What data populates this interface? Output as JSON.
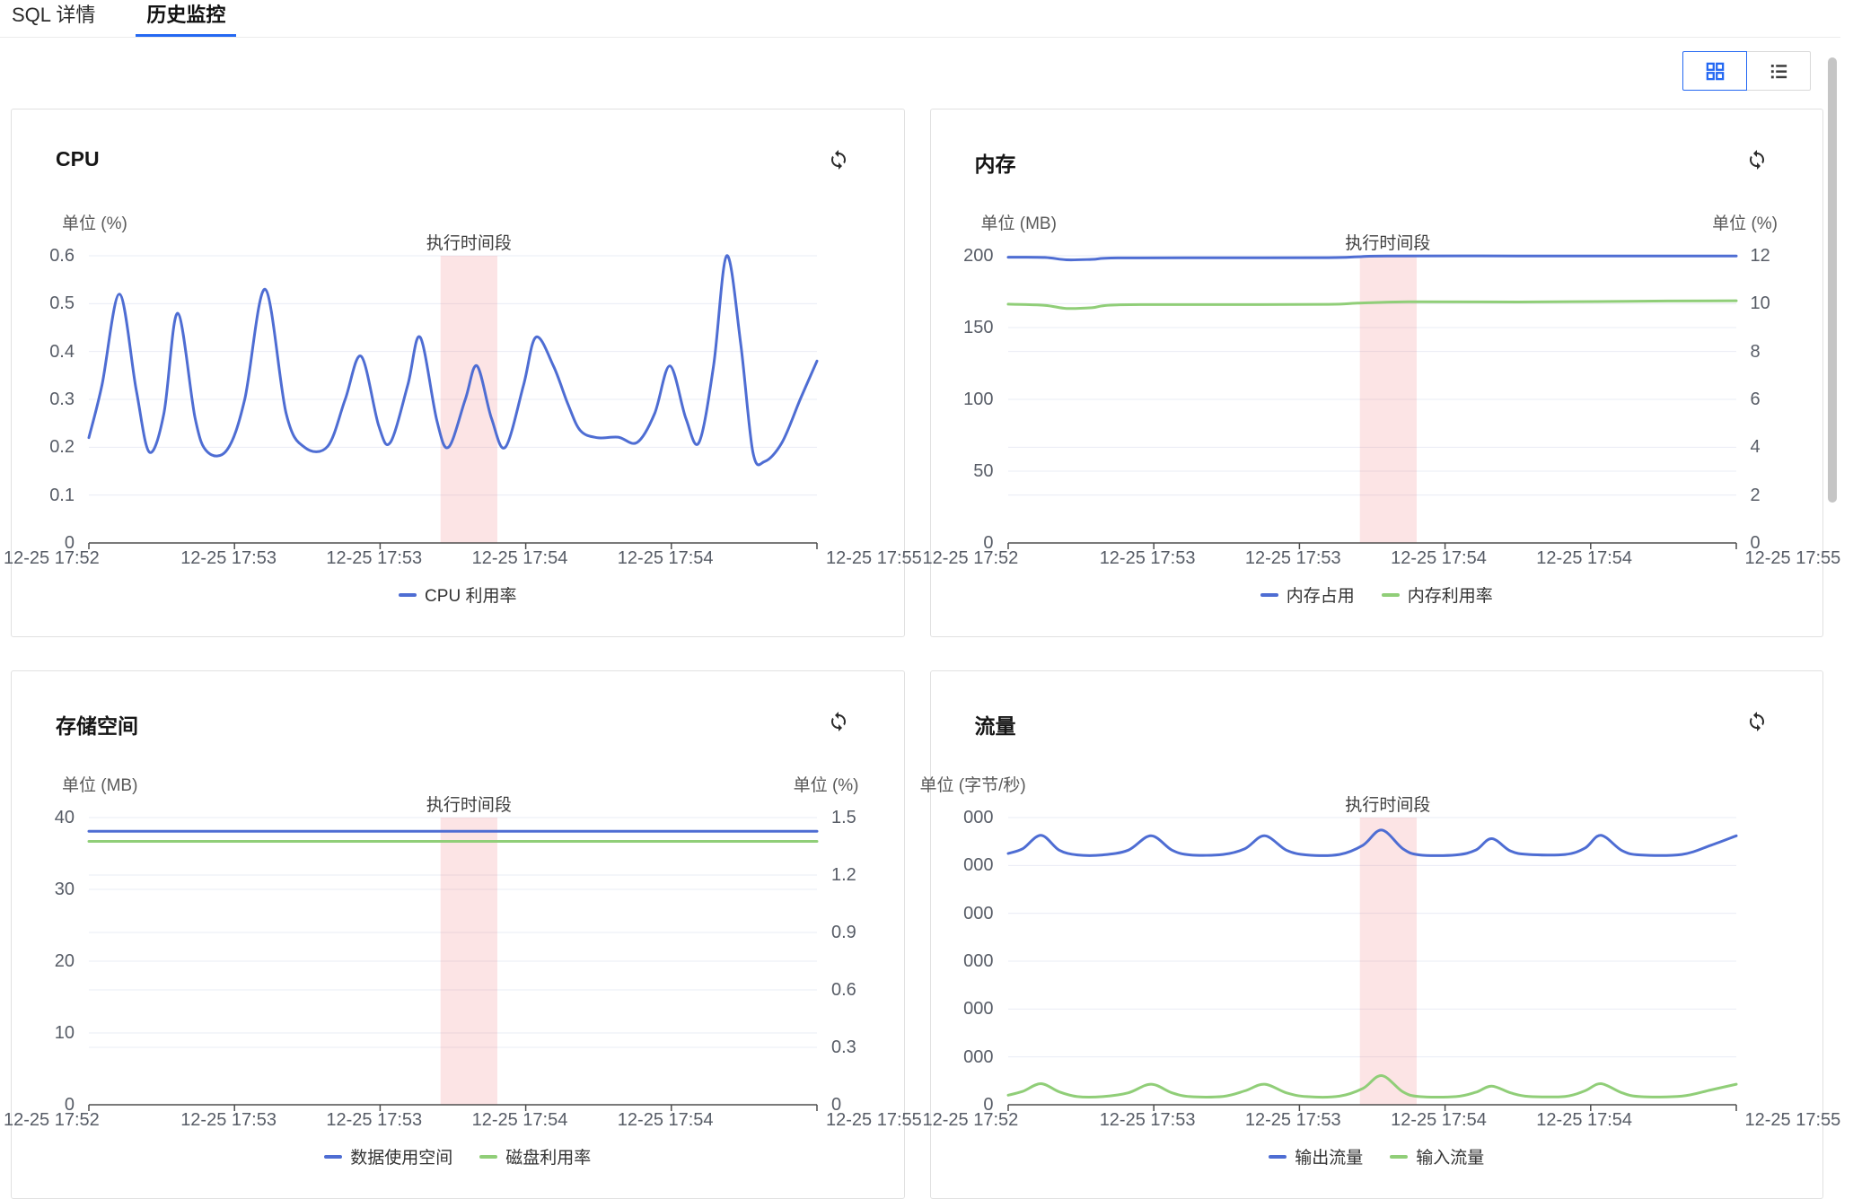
{
  "colors": {
    "accent": "#2468f2",
    "line_blue": "#4e6dd3",
    "line_green": "#90ce78",
    "band_pink": "rgba(237,104,110,0.18)",
    "grid_line": "#e9ecf4",
    "axis_line": "#4e4e4e"
  },
  "icons": {
    "refresh": "refresh-icon",
    "grid_view": "grid-view-icon",
    "list_view": "list-view-icon"
  },
  "tabs": [
    {
      "label": "SQL 详情",
      "active": false
    },
    {
      "label": "历史监控",
      "active": true
    }
  ],
  "cards": [
    {
      "title": "CPU",
      "type": "line",
      "unit_left": "单位 (%)",
      "unit_left_clipped": false,
      "unit_right": null,
      "band": {
        "from": 0.483,
        "to": 0.561,
        "label": "执行时间段"
      },
      "x_labels": [
        "12-25 17:52",
        "12-25 17:53",
        "12-25 17:53",
        "12-25 17:54",
        "12-25 17:54",
        "12-25 17:55"
      ],
      "left_axis": {
        "min": 0,
        "max": 0.6,
        "ticks": [
          {
            "v": 0.6,
            "label": "0.6"
          },
          {
            "v": 0.5,
            "label": "0.5"
          },
          {
            "v": 0.4,
            "label": "0.4"
          },
          {
            "v": 0.3,
            "label": "0.3"
          },
          {
            "v": 0.2,
            "label": "0.2"
          },
          {
            "v": 0.1,
            "label": "0.1"
          },
          {
            "v": 0,
            "label": "0"
          }
        ]
      },
      "right_axis": null,
      "series": [
        {
          "name": "CPU 利用率",
          "axis": "left",
          "color": "#4e6dd3",
          "points": [
            [
              0,
              0.22
            ],
            [
              0.018,
              0.33
            ],
            [
              0.042,
              0.52
            ],
            [
              0.065,
              0.32
            ],
            [
              0.083,
              0.19
            ],
            [
              0.103,
              0.27
            ],
            [
              0.122,
              0.48
            ],
            [
              0.146,
              0.26
            ],
            [
              0.163,
              0.19
            ],
            [
              0.19,
              0.195
            ],
            [
              0.214,
              0.3
            ],
            [
              0.242,
              0.53
            ],
            [
              0.271,
              0.27
            ],
            [
              0.296,
              0.2
            ],
            [
              0.328,
              0.202
            ],
            [
              0.352,
              0.3
            ],
            [
              0.374,
              0.39
            ],
            [
              0.398,
              0.245
            ],
            [
              0.414,
              0.21
            ],
            [
              0.438,
              0.33
            ],
            [
              0.455,
              0.43
            ],
            [
              0.478,
              0.255
            ],
            [
              0.494,
              0.2
            ],
            [
              0.517,
              0.3
            ],
            [
              0.533,
              0.37
            ],
            [
              0.553,
              0.26
            ],
            [
              0.572,
              0.2
            ],
            [
              0.597,
              0.33
            ],
            [
              0.614,
              0.43
            ],
            [
              0.638,
              0.37
            ],
            [
              0.658,
              0.29
            ],
            [
              0.675,
              0.235
            ],
            [
              0.698,
              0.22
            ],
            [
              0.727,
              0.221
            ],
            [
              0.753,
              0.21
            ],
            [
              0.777,
              0.27
            ],
            [
              0.798,
              0.37
            ],
            [
              0.82,
              0.26
            ],
            [
              0.838,
              0.21
            ],
            [
              0.858,
              0.37
            ],
            [
              0.876,
              0.6
            ],
            [
              0.895,
              0.42
            ],
            [
              0.912,
              0.19
            ],
            [
              0.928,
              0.17
            ],
            [
              0.952,
              0.21
            ],
            [
              0.977,
              0.3
            ],
            [
              1,
              0.38
            ]
          ]
        }
      ],
      "legend": [
        {
          "label": "CPU 利用率",
          "color": "#4e6dd3"
        }
      ]
    },
    {
      "title": "内存",
      "type": "line",
      "unit_left": "单位 (MB)",
      "unit_left_clipped": false,
      "unit_right": "单位 (%)",
      "band": {
        "from": 0.483,
        "to": 0.561,
        "label": "执行时间段"
      },
      "x_labels": [
        "12-25 17:52",
        "12-25 17:53",
        "12-25 17:53",
        "12-25 17:54",
        "12-25 17:54",
        "12-25 17:55"
      ],
      "left_axis": {
        "min": 0,
        "max": 200,
        "ticks": [
          {
            "v": 200,
            "label": "200"
          },
          {
            "v": 150,
            "label": "150"
          },
          {
            "v": 100,
            "label": "100"
          },
          {
            "v": 50,
            "label": "50"
          },
          {
            "v": 0,
            "label": "0"
          }
        ]
      },
      "right_axis": {
        "min": 0,
        "max": 12,
        "ticks": [
          {
            "v": 12,
            "label": "12"
          },
          {
            "v": 10,
            "label": "10"
          },
          {
            "v": 8,
            "label": "8"
          },
          {
            "v": 6,
            "label": "6"
          },
          {
            "v": 4,
            "label": "4"
          },
          {
            "v": 2,
            "label": "2"
          },
          {
            "v": 0,
            "label": "0"
          }
        ]
      },
      "series": [
        {
          "name": "内存占用",
          "axis": "left",
          "color": "#4e6dd3",
          "points": [
            [
              0,
              199
            ],
            [
              0.05,
              198.8
            ],
            [
              0.08,
              197.2
            ],
            [
              0.115,
              197.5
            ],
            [
              0.15,
              198.5
            ],
            [
              0.3,
              198.6
            ],
            [
              0.44,
              198.7
            ],
            [
              0.48,
              199.3
            ],
            [
              0.52,
              199.9
            ],
            [
              0.7,
              199.9
            ],
            [
              0.85,
              199.9
            ],
            [
              1,
              199.9
            ]
          ]
        },
        {
          "name": "内存利用率",
          "axis": "right",
          "color": "#90ce78",
          "points": [
            [
              0,
              9.98
            ],
            [
              0.05,
              9.93
            ],
            [
              0.08,
              9.8
            ],
            [
              0.115,
              9.83
            ],
            [
              0.15,
              9.95
            ],
            [
              0.3,
              9.96
            ],
            [
              0.44,
              9.97
            ],
            [
              0.48,
              10.02
            ],
            [
              0.55,
              10.08
            ],
            [
              0.7,
              10.07
            ],
            [
              0.85,
              10.1
            ],
            [
              1,
              10.12
            ]
          ]
        }
      ],
      "legend": [
        {
          "label": "内存占用",
          "color": "#4e6dd3"
        },
        {
          "label": "内存利用率",
          "color": "#90ce78"
        }
      ]
    },
    {
      "title": "存储空间",
      "type": "line",
      "unit_left": "单位 (MB)",
      "unit_left_clipped": false,
      "unit_right": "单位 (%)",
      "band": {
        "from": 0.483,
        "to": 0.561,
        "label": "执行时间段"
      },
      "x_labels": [
        "12-25 17:52",
        "12-25 17:53",
        "12-25 17:53",
        "12-25 17:54",
        "12-25 17:54",
        "12-25 17:55"
      ],
      "left_axis": {
        "min": 0,
        "max": 40,
        "ticks": [
          {
            "v": 40,
            "label": "40"
          },
          {
            "v": 30,
            "label": "30"
          },
          {
            "v": 20,
            "label": "20"
          },
          {
            "v": 10,
            "label": "10"
          },
          {
            "v": 0,
            "label": "0"
          }
        ]
      },
      "right_axis": {
        "min": 0,
        "max": 1.5,
        "ticks": [
          {
            "v": 1.5,
            "label": "1.5"
          },
          {
            "v": 1.2,
            "label": "1.2"
          },
          {
            "v": 0.9,
            "label": "0.9"
          },
          {
            "v": 0.6,
            "label": "0.6"
          },
          {
            "v": 0.3,
            "label": "0.3"
          },
          {
            "v": 0,
            "label": "0"
          }
        ]
      },
      "series": [
        {
          "name": "数据使用空间",
          "axis": "left",
          "color": "#4e6dd3",
          "points": [
            [
              0,
              38.1
            ],
            [
              0.25,
              38.1
            ],
            [
              0.5,
              38.1
            ],
            [
              0.75,
              38.1
            ],
            [
              1,
              38.1
            ]
          ]
        },
        {
          "name": "磁盘利用率",
          "axis": "right",
          "color": "#90ce78",
          "points": [
            [
              0,
              1.376
            ],
            [
              0.25,
              1.376
            ],
            [
              0.5,
              1.376
            ],
            [
              0.75,
              1.376
            ],
            [
              1,
              1.376
            ]
          ]
        }
      ],
      "legend": [
        {
          "label": "数据使用空间",
          "color": "#4e6dd3"
        },
        {
          "label": "磁盘利用率",
          "color": "#90ce78"
        }
      ]
    },
    {
      "title": "流量",
      "type": "line",
      "unit_left": "单位 (字节/秒)",
      "unit_left_clipped": true,
      "unit_right": null,
      "band": {
        "from": 0.483,
        "to": 0.561,
        "label": "执行时间段"
      },
      "x_labels": [
        "12-25 17:52",
        "12-25 17:53",
        "12-25 17:53",
        "12-25 17:54",
        "12-25 17:54",
        "12-25 17:55"
      ],
      "left_axis": {
        "min": 0,
        "max": 60000,
        "ticks": [
          {
            "v": 60000,
            "label": "000"
          },
          {
            "v": 50000,
            "label": "000"
          },
          {
            "v": 40000,
            "label": "000"
          },
          {
            "v": 30000,
            "label": "000"
          },
          {
            "v": 20000,
            "label": "000"
          },
          {
            "v": 10000,
            "label": "000"
          },
          {
            "v": 0,
            "label": "0"
          }
        ]
      },
      "right_axis": null,
      "series": [
        {
          "name": "输出流量",
          "axis": "left",
          "color": "#4e6dd3",
          "points": [
            [
              0,
              52500
            ],
            [
              0.02,
              53500
            ],
            [
              0.045,
              56300
            ],
            [
              0.07,
              53200
            ],
            [
              0.095,
              52200
            ],
            [
              0.13,
              52200
            ],
            [
              0.165,
              53200
            ],
            [
              0.196,
              56200
            ],
            [
              0.225,
              53200
            ],
            [
              0.25,
              52200
            ],
            [
              0.295,
              52300
            ],
            [
              0.325,
              53500
            ],
            [
              0.352,
              56200
            ],
            [
              0.382,
              53200
            ],
            [
              0.41,
              52200
            ],
            [
              0.455,
              52300
            ],
            [
              0.487,
              54200
            ],
            [
              0.513,
              57400
            ],
            [
              0.542,
              53500
            ],
            [
              0.565,
              52200
            ],
            [
              0.615,
              52200
            ],
            [
              0.642,
              53200
            ],
            [
              0.664,
              55600
            ],
            [
              0.69,
              53000
            ],
            [
              0.715,
              52300
            ],
            [
              0.765,
              52300
            ],
            [
              0.792,
              53600
            ],
            [
              0.814,
              56300
            ],
            [
              0.843,
              53100
            ],
            [
              0.868,
              52200
            ],
            [
              0.925,
              52300
            ],
            [
              0.965,
              54200
            ],
            [
              1,
              56200
            ]
          ]
        },
        {
          "name": "输入流量",
          "axis": "left",
          "color": "#90ce78",
          "points": [
            [
              0,
              2000
            ],
            [
              0.02,
              2800
            ],
            [
              0.045,
              4400
            ],
            [
              0.07,
              2700
            ],
            [
              0.095,
              1700
            ],
            [
              0.13,
              1700
            ],
            [
              0.165,
              2500
            ],
            [
              0.196,
              4300
            ],
            [
              0.225,
              2500
            ],
            [
              0.25,
              1700
            ],
            [
              0.295,
              1750
            ],
            [
              0.325,
              2900
            ],
            [
              0.352,
              4300
            ],
            [
              0.382,
              2500
            ],
            [
              0.41,
              1700
            ],
            [
              0.455,
              1800
            ],
            [
              0.487,
              3400
            ],
            [
              0.513,
              6100
            ],
            [
              0.542,
              2700
            ],
            [
              0.565,
              1700
            ],
            [
              0.615,
              1700
            ],
            [
              0.642,
              2600
            ],
            [
              0.664,
              3900
            ],
            [
              0.69,
              2500
            ],
            [
              0.715,
              1750
            ],
            [
              0.765,
              1750
            ],
            [
              0.792,
              2900
            ],
            [
              0.814,
              4400
            ],
            [
              0.843,
              2500
            ],
            [
              0.868,
              1700
            ],
            [
              0.925,
              1800
            ],
            [
              0.965,
              3100
            ],
            [
              1,
              4300
            ]
          ]
        }
      ],
      "legend": [
        {
          "label": "输出流量",
          "color": "#4e6dd3"
        },
        {
          "label": "输入流量",
          "color": "#90ce78"
        }
      ]
    }
  ]
}
